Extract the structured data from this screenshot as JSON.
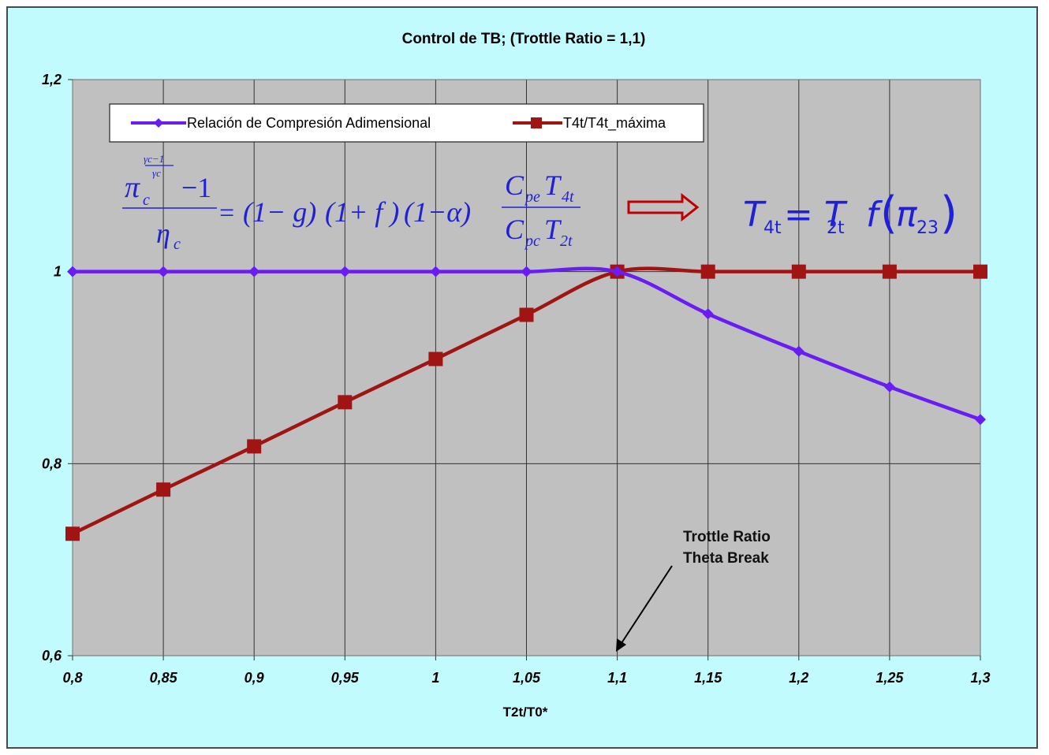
{
  "chart_data": {
    "type": "line",
    "title": "Control de TB; (Trottle Ratio = 1,1)",
    "xlabel": "T2t/T0*",
    "ylabel": "",
    "x": [
      0.8,
      0.85,
      0.9,
      0.95,
      1.0,
      1.05,
      1.1,
      1.15,
      1.2,
      1.25,
      1.3
    ],
    "x_tick_labels": [
      "0,8",
      "0,85",
      "0,9",
      "0,95",
      "1",
      "1,05",
      "1,1",
      "1,15",
      "1,2",
      "1,25",
      "1,3"
    ],
    "y_ticks": [
      0.6,
      0.8,
      1.0,
      1.2
    ],
    "y_tick_labels": [
      "0,6",
      "0,8",
      "1",
      "1,2"
    ],
    "xlim": [
      0.8,
      1.3
    ],
    "ylim": [
      0.6,
      1.2
    ],
    "grid": true,
    "legend_position": "top",
    "series": [
      {
        "name": "Relación de Compresión Adimensional",
        "color": "#6a1cf5",
        "marker": "diamond",
        "values": [
          1.0,
          1.0,
          1.0,
          1.0,
          1.0,
          1.0,
          1.0,
          0.956,
          0.917,
          0.88,
          0.846
        ]
      },
      {
        "name": "T4t/T4t_máxima",
        "color": "#a01414",
        "marker": "square",
        "values": [
          0.727,
          0.773,
          0.818,
          0.864,
          0.909,
          0.955,
          1.0,
          1.0,
          1.0,
          1.0,
          1.0
        ]
      }
    ],
    "annotations": [
      {
        "lines": [
          "Trottle Ratio",
          "Theta Break"
        ],
        "points_to_x": 1.1
      }
    ]
  },
  "equations": {
    "lhs_base": "π",
    "lhs_base_sub": "c",
    "lhs_exp_num": "γc−1",
    "lhs_exp_den": "γc",
    "lhs_minus": "−1",
    "lhs_den": "η",
    "lhs_den_sub": "c",
    "rhs_g": "(1− g)",
    "rhs_f": "(1+ f )",
    "rhs_a": "(1−α)",
    "rhs_num": "C",
    "rhs_num_sub1": "pe",
    "rhs_num_T": "T",
    "rhs_num_sub2": "4t",
    "rhs_den": "C",
    "rhs_den_sub1": "pc",
    "rhs_den_T": "T",
    "rhs_den_sub2": "2t",
    "eq2_lhs": "T",
    "eq2_lhs_sub": "4t",
    "eq2_mid": "= T",
    "eq2_mid_sub": "2t",
    "eq2_f": "f",
    "eq2_pi": "π",
    "eq2_pi_sub": "23",
    "arrow_color": "#c00000"
  }
}
